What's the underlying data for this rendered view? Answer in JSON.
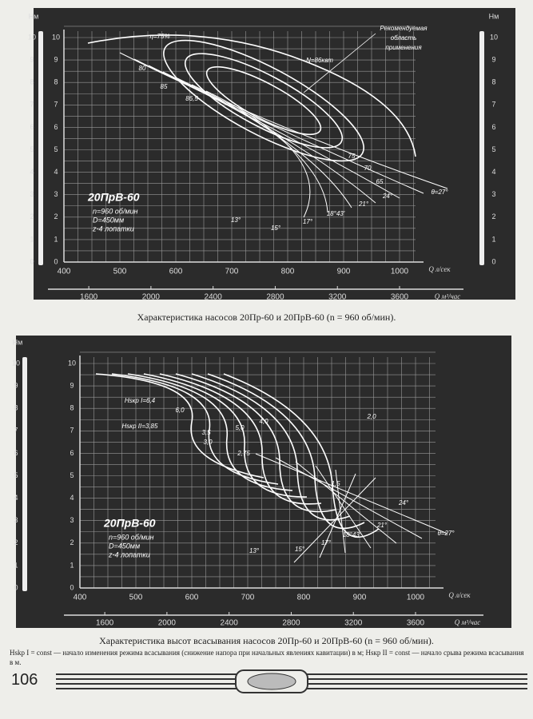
{
  "figures": [
    {
      "y_axis_label": "Hм",
      "y_ticks": [
        "0",
        "1",
        "2",
        "3",
        "4",
        "5",
        "6",
        "7",
        "8",
        "9",
        "10"
      ],
      "x_ticks": [
        "400",
        "500",
        "600",
        "700",
        "800",
        "900",
        "1000"
      ],
      "x_label": "Q л/сек",
      "x2_ticks": [
        "1600",
        "2000",
        "2400",
        "2800",
        "3200",
        "3600"
      ],
      "x2_label": "Q м³/час",
      "pump": [
        "20ПрВ-60",
        "n=960 об/мин",
        "D=450мм",
        "z-4 лопатки"
      ],
      "annotations": [
        "η=75%",
        "80",
        "85",
        "86,5",
        "N=86квт",
        "Рекомендуемая",
        "область",
        "применения",
        "θ=27°",
        "24°",
        "21°",
        "18°43'",
        "17°",
        "15°",
        "13°",
        "75",
        "70",
        "65"
      ],
      "caption": "Характеристика насосов 20Пр-60 и 20ПрВ-60 (n = 960 об/мин)."
    },
    {
      "y_axis_label": "Hм",
      "y_ticks": [
        "0",
        "1",
        "2",
        "3",
        "4",
        "5",
        "6",
        "7",
        "8",
        "9",
        "10"
      ],
      "x_ticks": [
        "400",
        "500",
        "600",
        "700",
        "800",
        "900",
        "1000"
      ],
      "x_label": "Q л/сек",
      "x2_ticks": [
        "1600",
        "2000",
        "2400",
        "2800",
        "3200",
        "3600"
      ],
      "x2_label": "Q м³/час",
      "pump": [
        "20ПрВ-60",
        "n=960 об/мин",
        "D=450мм",
        "z-4 лопатки"
      ],
      "annotations": [
        "Hsкр I=6,4",
        "Hsкр II=3,85",
        "6,0",
        "5,0",
        "4,0",
        "3,5",
        "3,0",
        "2,75",
        "2,0",
        "1,5",
        "θ=27°",
        "24°",
        "21°",
        "18°43'",
        "17°",
        "15°",
        "13°"
      ],
      "caption": "Характеристика высот всасывания насосов 20Пр-60 и 20ПрВ-60 (n = 960 об/мин)."
    }
  ],
  "footnote": "Hskp I = const — начало изменения режима всасывания (снижение напора при начальных явлениях кавитации) в м; Hsкр II = const — начало срыва режима всасывания в м.",
  "page_number": "106"
}
